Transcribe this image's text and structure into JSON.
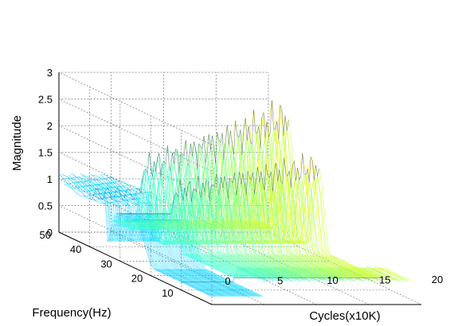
{
  "chart_data": {
    "type": "surface",
    "title": "",
    "zlabel": "Magnitude",
    "ylabel": "Frequency(Hz)",
    "xlabel": "Cycles(x10K)",
    "zlim": [
      0,
      3
    ],
    "ylim": [
      0,
      50
    ],
    "xlim": [
      0,
      20
    ],
    "zticks": [
      "0",
      "0.5",
      "1",
      "1.5",
      "2",
      "2.5",
      "3"
    ],
    "yticks": [
      "10",
      "20",
      "30",
      "40",
      "50"
    ],
    "xticks": [
      "0",
      "5",
      "10",
      "15",
      "20"
    ],
    "grid": true,
    "colormap": "jet",
    "cycles_from_to": [
      0,
      19
    ],
    "frequency_from_to": [
      0,
      50
    ],
    "surface_features": {
      "back_ridge": {
        "frequency_hz": 40,
        "cycles_from": 0,
        "cycles_to": 19,
        "height_from": 1.1,
        "height_to": 2.4
      },
      "front_ridge": {
        "frequency_hz": 30,
        "cycles_from": 0,
        "cycles_to": 19,
        "height_from": 1.1,
        "height_to": 1.75
      },
      "baseline_band": {
        "frequency_from": 0,
        "frequency_to": 10,
        "height": 0.45
      },
      "low_cycle_plateau": {
        "cycles_from": 0,
        "cycles_to": 5,
        "height": 1.1
      }
    }
  }
}
